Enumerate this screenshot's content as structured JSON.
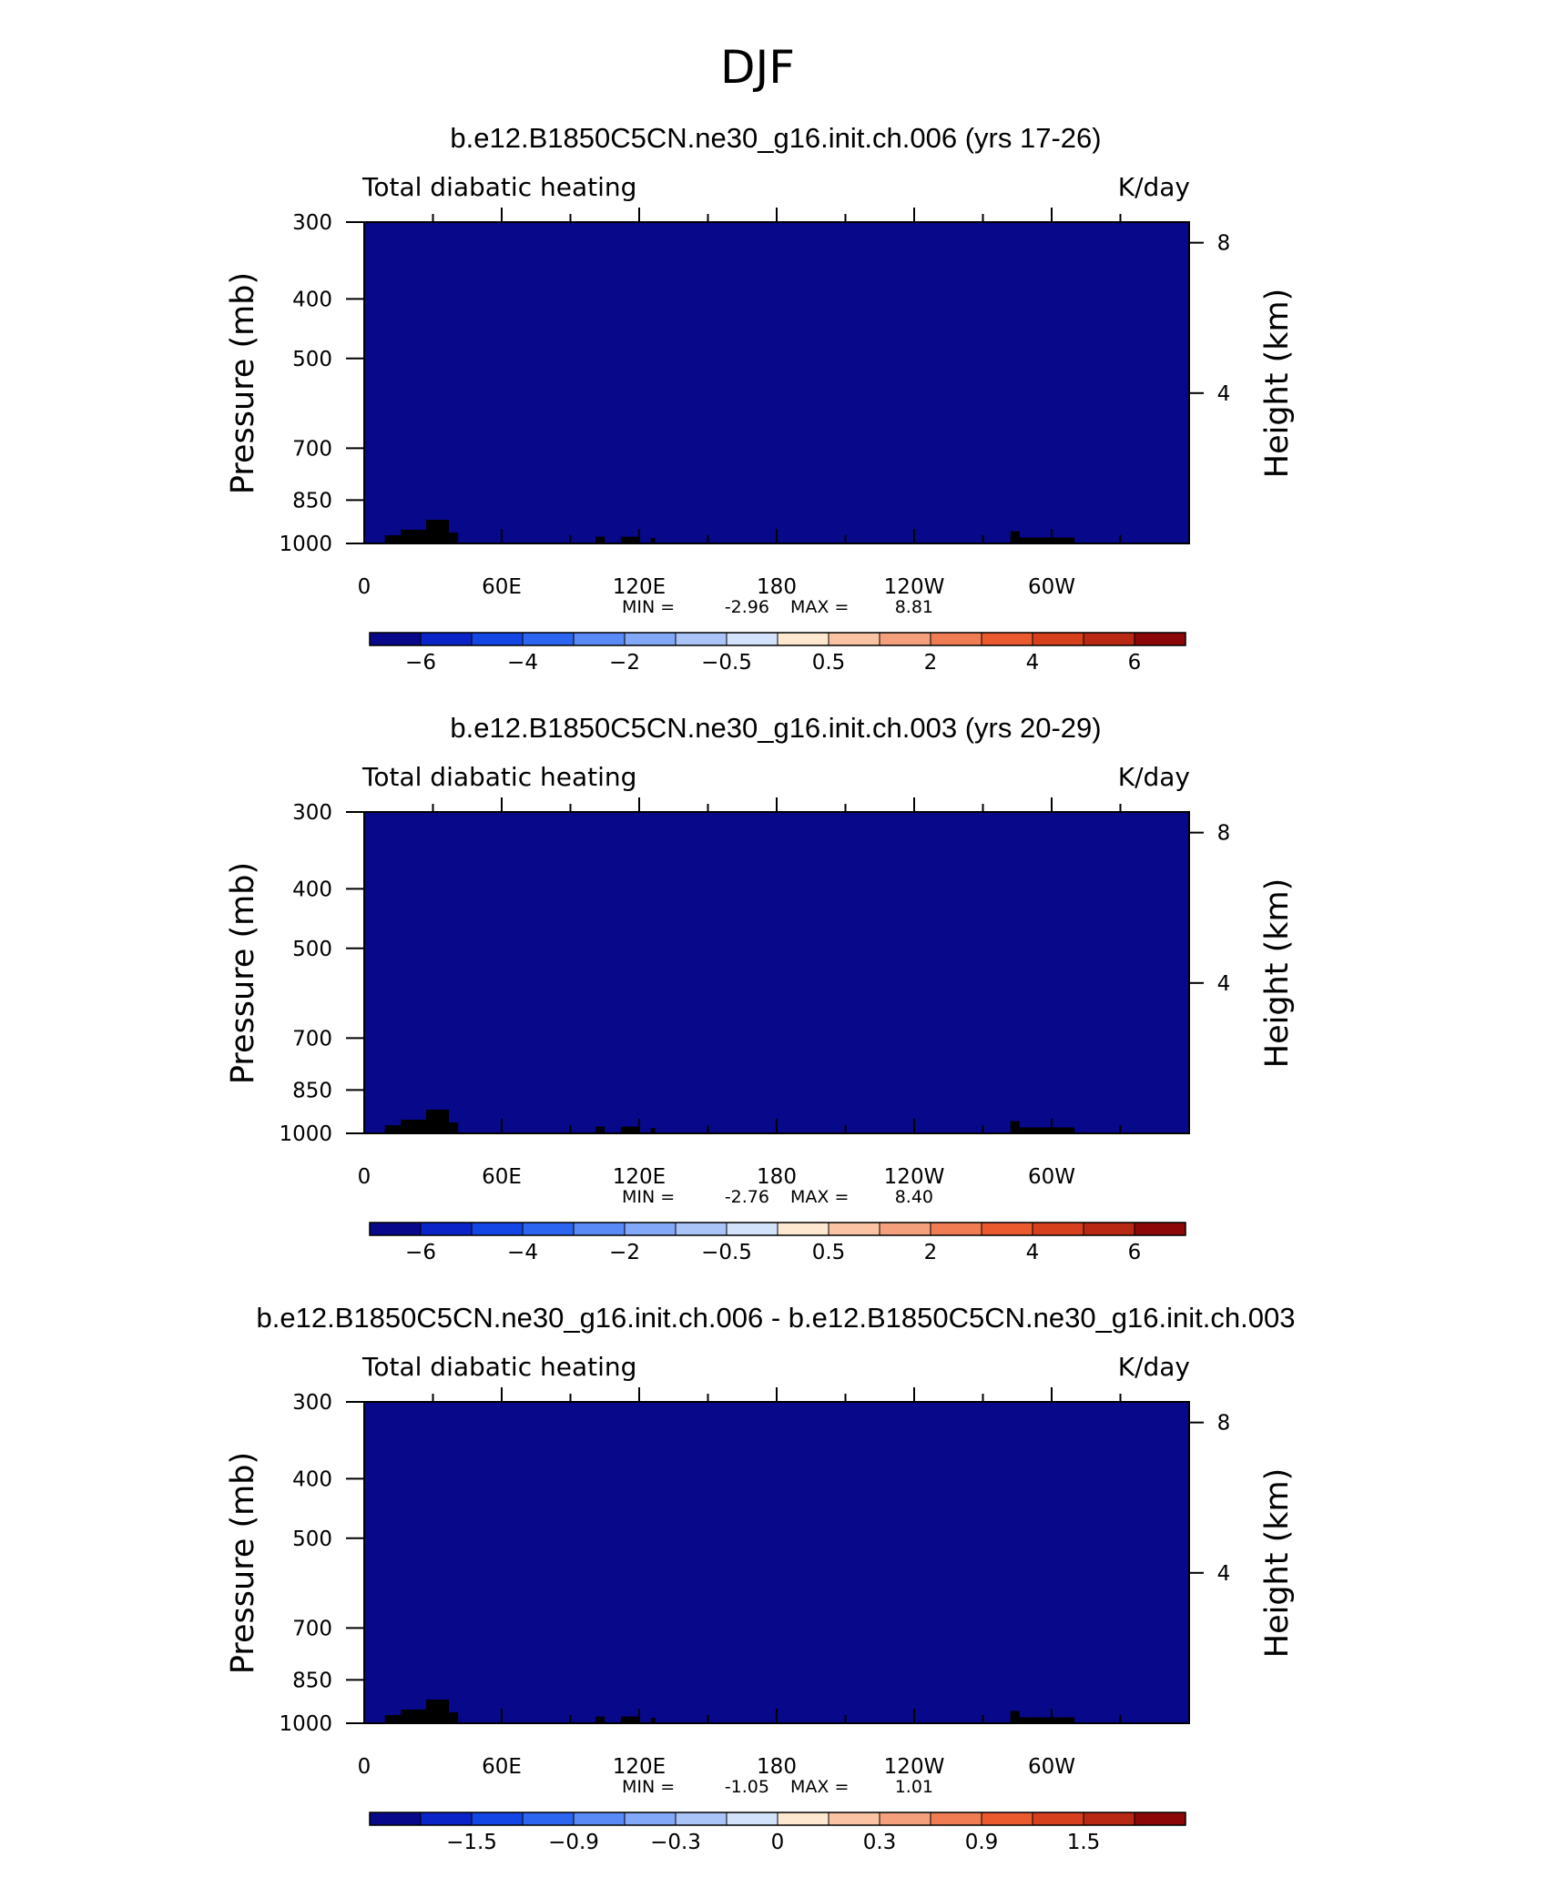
{
  "figure_title": "DJF",
  "chart_data": [
    {
      "type": "heatmap",
      "title": "b.e12.B1850C5CN.ne30_g16.init.ch.006 (yrs 17-26)",
      "left_label": "Total diabatic heating",
      "right_label": "K/day",
      "xlabel": "",
      "ylabel": "Pressure (mb)",
      "ylabel_right": "Height (km)",
      "x_ticks": [
        "0",
        "60E",
        "120E",
        "180",
        "120W",
        "60W"
      ],
      "y_ticks": [
        "300",
        "400",
        "500",
        "700",
        "850",
        "1000"
      ],
      "height_ticks": [
        "8",
        "4"
      ],
      "min_label": "MIN =",
      "min_value": "-2.96",
      "max_label": "MAX =",
      "max_value": "8.81",
      "colorbar_labels": [
        "-6",
        "-4",
        "-2",
        "-0.5",
        "0.5",
        "2",
        "4",
        "6"
      ],
      "field_scale": 1.0,
      "colorbar_levels": [
        -7,
        -6,
        -5,
        -4,
        -3,
        -2,
        -1,
        -0.5,
        0,
        0.5,
        1,
        2,
        3,
        4,
        5,
        6,
        7
      ]
    },
    {
      "type": "heatmap",
      "title": "b.e12.B1850C5CN.ne30_g16.init.ch.003 (yrs 20-29)",
      "left_label": "Total diabatic heating",
      "right_label": "K/day",
      "xlabel": "",
      "ylabel": "Pressure (mb)",
      "ylabel_right": "Height (km)",
      "x_ticks": [
        "0",
        "60E",
        "120E",
        "180",
        "120W",
        "60W"
      ],
      "y_ticks": [
        "300",
        "400",
        "500",
        "700",
        "850",
        "1000"
      ],
      "height_ticks": [
        "8",
        "4"
      ],
      "min_label": "MIN =",
      "min_value": "-2.76",
      "max_label": "MAX =",
      "max_value": "8.40",
      "colorbar_labels": [
        "-6",
        "-4",
        "-2",
        "-0.5",
        "0.5",
        "2",
        "4",
        "6"
      ],
      "field_scale": 0.95,
      "colorbar_levels": [
        -7,
        -6,
        -5,
        -4,
        -3,
        -2,
        -1,
        -0.5,
        0,
        0.5,
        1,
        2,
        3,
        4,
        5,
        6,
        7
      ]
    },
    {
      "type": "heatmap",
      "title": "b.e12.B1850C5CN.ne30_g16.init.ch.006 - b.e12.B1850C5CN.ne30_g16.init.ch.003",
      "left_label": "Total diabatic heating",
      "right_label": "K/day",
      "xlabel": "",
      "ylabel": "Pressure (mb)",
      "ylabel_right": "Height (km)",
      "x_ticks": [
        "0",
        "60E",
        "120E",
        "180",
        "120W",
        "60W"
      ],
      "y_ticks": [
        "300",
        "400",
        "500",
        "700",
        "850",
        "1000"
      ],
      "height_ticks": [
        "8",
        "4"
      ],
      "min_label": "MIN =",
      "min_value": "-1.05",
      "max_label": "MAX =",
      "max_value": "1.01",
      "colorbar_labels": [
        "-1.5",
        "-0.9",
        "-0.3",
        "0",
        "0.3",
        "0.9",
        "1.5"
      ],
      "field_scale": 1.0,
      "colorbar_levels": [
        -2.1,
        -1.8,
        -1.5,
        -1.2,
        -0.9,
        -0.6,
        -0.3,
        -0.1,
        0,
        0.1,
        0.3,
        0.6,
        0.9,
        1.2,
        1.5,
        1.8,
        2.1
      ]
    }
  ],
  "colormap": [
    "#08088a",
    "#0a24c8",
    "#1446e6",
    "#2c66f0",
    "#5a8af5",
    "#82a8f7",
    "#aac4f8",
    "#d2e2fb",
    "#ffe8d0",
    "#fac4a4",
    "#f5a07c",
    "#f07c54",
    "#ea5a2e",
    "#d6401c",
    "#b82812",
    "#8c0808"
  ]
}
